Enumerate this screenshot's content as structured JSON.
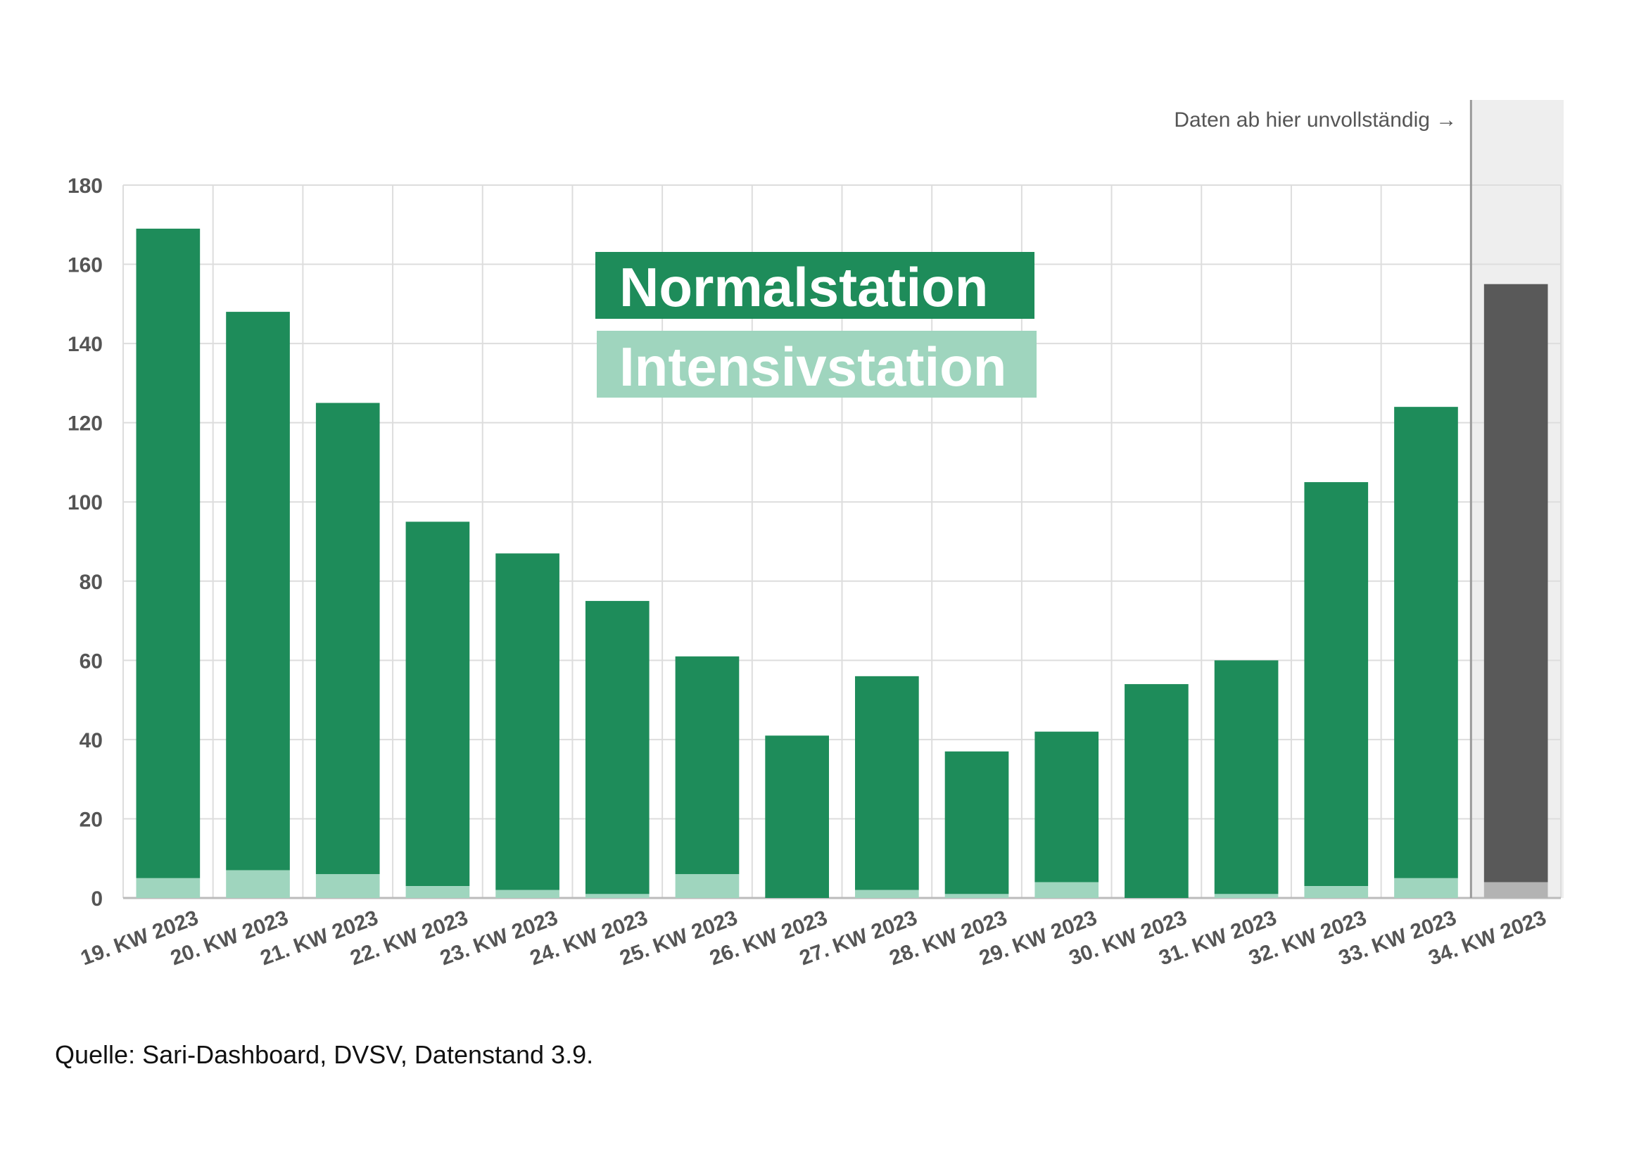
{
  "chart_data": {
    "type": "bar",
    "stacked": true,
    "categories": [
      "19. KW 2023",
      "20. KW 2023",
      "21. KW 2023",
      "22. KW 2023",
      "23. KW 2023",
      "24. KW 2023",
      "25. KW 2023",
      "26. KW 2023",
      "27. KW 2023",
      "28. KW 2023",
      "29. KW 2023",
      "30. KW 2023",
      "31. KW 2023",
      "32. KW 2023",
      "33. KW 2023",
      "34. KW 2023"
    ],
    "series": [
      {
        "name": "Intensivstation",
        "values": [
          5,
          7,
          6,
          3,
          2,
          1,
          6,
          0,
          2,
          1,
          4,
          0,
          1,
          3,
          5,
          4
        ]
      },
      {
        "name": "Normalstation",
        "values": [
          164,
          141,
          119,
          92,
          85,
          74,
          55,
          41,
          54,
          36,
          38,
          54,
          59,
          102,
          119,
          151
        ]
      }
    ],
    "totals": [
      169,
      148,
      125,
      95,
      87,
      75,
      61,
      41,
      56,
      37,
      42,
      54,
      60,
      105,
      124,
      155
    ],
    "ylim": [
      0,
      180
    ],
    "yticks": [
      0,
      20,
      40,
      60,
      80,
      100,
      120,
      140,
      160,
      180
    ],
    "incomplete_from_index": 15,
    "incomplete_note": "Daten ab hier unvollständig →",
    "grid": true,
    "legend_position": "top-center",
    "colors": {
      "normal": "#1e8c5a",
      "intensive": "#9fd5be",
      "incomplete_normal": "#595959",
      "incomplete_intensive": "#b3b3b3",
      "incomplete_background": "#eeeeee",
      "grid": "#dddddd"
    }
  },
  "legend": {
    "normal_label": "Normalstation",
    "intensive_label": "Intensivstation"
  },
  "source": "Quelle: Sari-Dashboard, DVSV, Datenstand 3.9."
}
